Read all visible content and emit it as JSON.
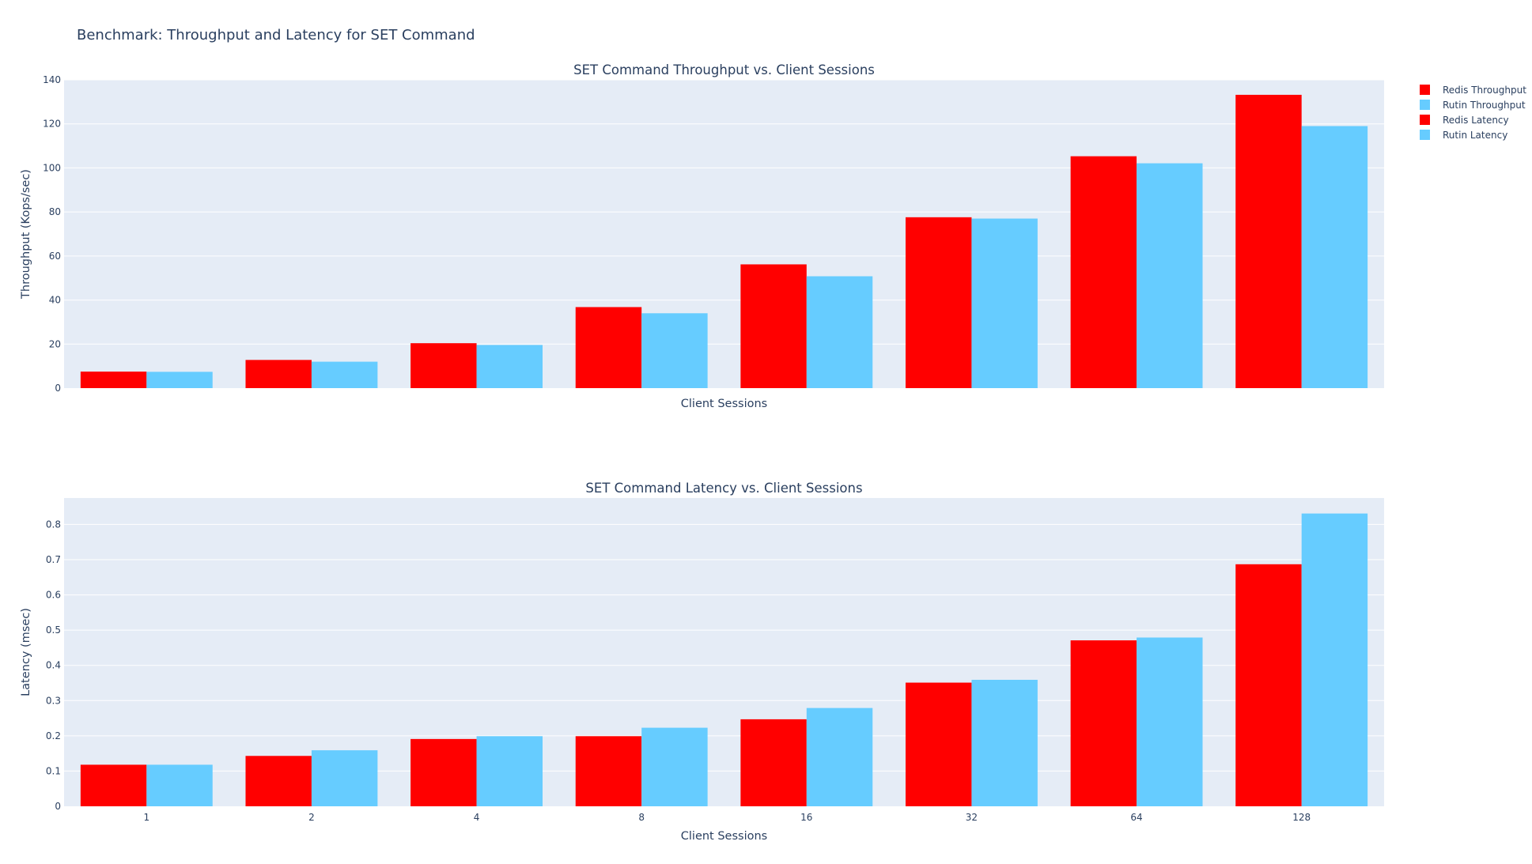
{
  "title": "Benchmark: Throughput and Latency for SET Command",
  "colors": {
    "redis": "#ff0000",
    "rutin": "#66ccff",
    "plot_bg": "#e5ecf6",
    "grid": "#ffffff"
  },
  "legend": [
    {
      "label": "Redis Throughput",
      "color": "#ff0000"
    },
    {
      "label": "Rutin Throughput",
      "color": "#66ccff"
    },
    {
      "label": "Redis Latency",
      "color": "#ff0000"
    },
    {
      "label": "Rutin Latency",
      "color": "#66ccff"
    }
  ],
  "chart_data": [
    {
      "type": "bar",
      "title": "SET Command Throughput vs. Client Sessions",
      "xlabel": "Client Sessions",
      "ylabel": "Throughput (Kops/sec)",
      "categories": [
        "1",
        "2",
        "4",
        "8",
        "16",
        "32",
        "64",
        "128"
      ],
      "show_x_ticks": false,
      "ylim": [
        0,
        140
      ],
      "yticks": [
        0,
        20,
        40,
        60,
        80,
        100,
        120,
        140
      ],
      "ytick_labels": [
        "0",
        "20",
        "40",
        "60",
        "80",
        "100",
        "120",
        "140"
      ],
      "series": [
        {
          "name": "Redis Throughput",
          "color": "#ff0000",
          "values": [
            7.5,
            12.8,
            20.4,
            36.8,
            56.2,
            77.6,
            105.3,
            133.2
          ]
        },
        {
          "name": "Rutin Throughput",
          "color": "#66ccff",
          "values": [
            7.4,
            12.0,
            19.6,
            34.0,
            50.8,
            77.0,
            102.1,
            119.0
          ]
        }
      ]
    },
    {
      "type": "bar",
      "title": "SET Command Latency vs. Client Sessions",
      "xlabel": "Client Sessions",
      "ylabel": "Latency (msec)",
      "categories": [
        "1",
        "2",
        "4",
        "8",
        "16",
        "32",
        "64",
        "128"
      ],
      "show_x_ticks": true,
      "ylim": [
        0,
        0.875
      ],
      "yticks": [
        0,
        0.1,
        0.2,
        0.3,
        0.4,
        0.5,
        0.6,
        0.7,
        0.8
      ],
      "ytick_labels": [
        "0",
        "0.1",
        "0.2",
        "0.3",
        "0.4",
        "0.5",
        "0.6",
        "0.7",
        "0.8"
      ],
      "series": [
        {
          "name": "Redis Latency",
          "color": "#ff0000",
          "values": [
            0.118,
            0.143,
            0.191,
            0.199,
            0.247,
            0.351,
            0.471,
            0.687
          ]
        },
        {
          "name": "Rutin Latency",
          "color": "#66ccff",
          "values": [
            0.118,
            0.159,
            0.199,
            0.223,
            0.279,
            0.359,
            0.479,
            0.831
          ]
        }
      ]
    }
  ]
}
